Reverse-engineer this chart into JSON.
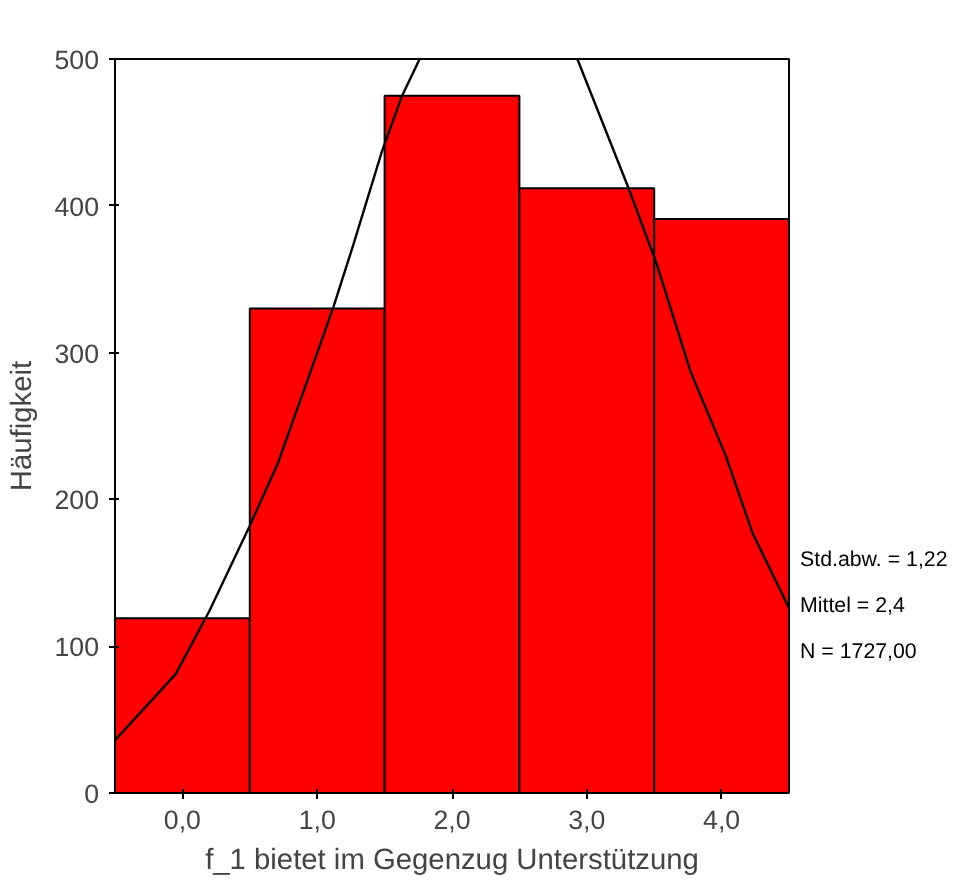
{
  "chart_data": {
    "type": "histogram",
    "xlabel": "f_1 bietet im Gegenzug Unterstützung",
    "ylabel": "Häufigkeit",
    "bins": [
      -0.5,
      0.5,
      1.5,
      2.5,
      3.5,
      4.5
    ],
    "values": [
      119,
      330,
      475,
      412,
      391
    ],
    "color": "#ff0000",
    "series": [
      {
        "type": "line",
        "color": "#000000",
        "x": [
          -0.5,
          -0.05,
          0.2,
          0.5,
          0.71,
          0.97,
          1.12,
          1.27,
          1.48,
          1.63,
          1.76,
          2.0,
          2.5,
          2.93,
          3.31,
          3.52,
          3.77,
          4.03,
          4.23,
          4.5
        ],
        "values": [
          36,
          81,
          124,
          182,
          225,
          292,
          331,
          374,
          437,
          475,
          500,
          null,
          null,
          500,
          412,
          360,
          287,
          230,
          177,
          126
        ]
      }
    ],
    "xlim": [
      -0.5,
      4.5
    ],
    "ylim": [
      0,
      500
    ],
    "xticks": [
      {
        "value": 0,
        "label": "0,0"
      },
      {
        "value": 1,
        "label": "1,0"
      },
      {
        "value": 2,
        "label": "2,0"
      },
      {
        "value": 3,
        "label": "3,0"
      },
      {
        "value": 4,
        "label": "4,0"
      }
    ],
    "yticks": [
      0,
      100,
      200,
      300,
      400,
      500
    ],
    "grid": false,
    "annotations": [
      "Std.abw. = 1,22",
      "Mittel = 2,4",
      "N = 1727,00"
    ]
  }
}
